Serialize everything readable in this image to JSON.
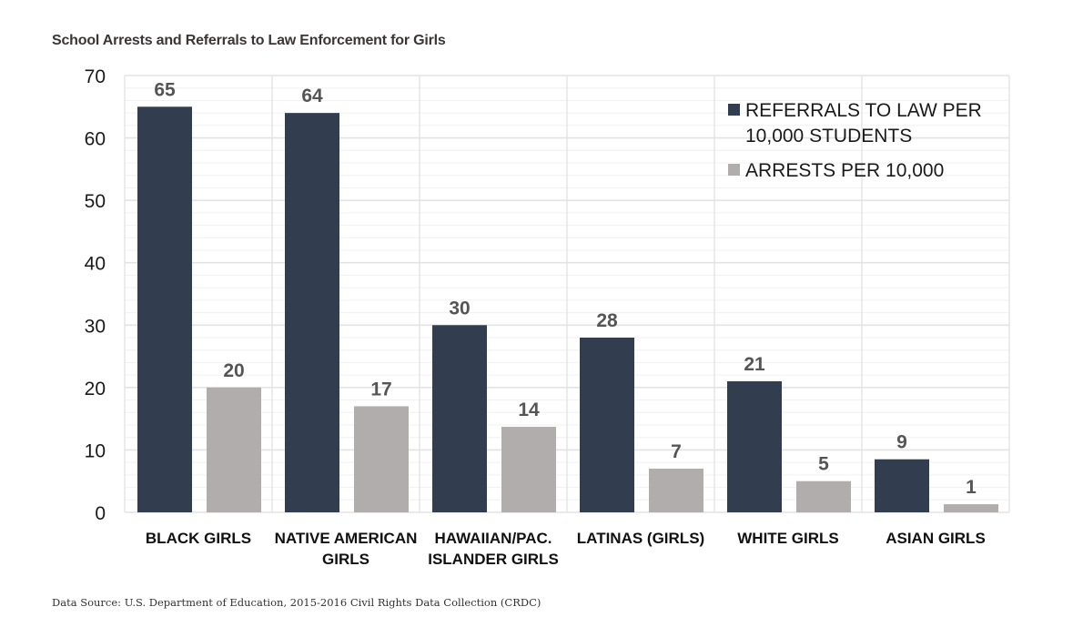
{
  "chart_data": {
    "type": "bar",
    "title": "School Arrests and Referrals to Law Enforcement for Girls",
    "categories": [
      [
        "BLACK GIRLS"
      ],
      [
        "NATIVE AMERICAN",
        "GIRLS"
      ],
      [
        "HAWAIIAN/PAC.",
        "ISLANDER GIRLS"
      ],
      [
        "LATINAS (GIRLS)"
      ],
      [
        "WHITE GIRLS"
      ],
      [
        "ASIAN GIRLS"
      ]
    ],
    "series": [
      {
        "name": "REFERRALS TO LAW PER 10,000 STUDENTS",
        "legend_lines": [
          "REFERRALS TO LAW PER",
          "10,000 STUDENTS"
        ],
        "color": "#323e4f",
        "values": [
          65,
          64,
          30,
          28,
          21,
          9
        ],
        "plot_values": [
          65,
          64,
          30,
          28,
          21,
          8.5
        ]
      },
      {
        "name": "ARRESTS PER 10,000",
        "legend_lines": [
          "ARRESTS PER 10,000"
        ],
        "color": "#b1adac",
        "values": [
          20,
          17,
          14,
          7,
          5,
          1
        ],
        "plot_values": [
          20,
          17,
          13.7,
          7,
          5,
          1.3
        ]
      }
    ],
    "xlabel": "",
    "ylabel": "",
    "ylim": [
      0,
      70
    ],
    "yticks": [
      0,
      10,
      20,
      30,
      40,
      50,
      60,
      70
    ],
    "grid": true,
    "legend_position": "top-right"
  },
  "source": "Data Source: U.S. Department of Education, 2015-2016 Civil Rights Data Collection (CRDC)"
}
